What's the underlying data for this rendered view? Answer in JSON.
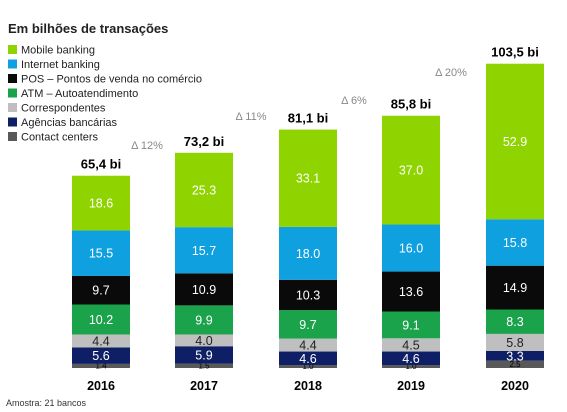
{
  "chart_data": {
    "type": "bar",
    "stacked": true,
    "title": "Em bilhões de transações",
    "categories": [
      "2016",
      "2017",
      "2018",
      "2019",
      "2020"
    ],
    "series": [
      {
        "name": "Contact centers",
        "color": "#595959",
        "values": [
          1.4,
          1.5,
          1.0,
          1.0,
          2.5
        ],
        "labels": [
          "1.4",
          "1.5",
          "1.0",
          "1.0",
          "2.5"
        ]
      },
      {
        "name": "Agências bancárias",
        "color": "#0f1f66",
        "values": [
          5.6,
          5.9,
          4.6,
          4.6,
          3.3
        ],
        "labels": [
          "5.6",
          "5.9",
          "4.6",
          "4.6",
          "3.3"
        ]
      },
      {
        "name": "Correspondentes",
        "color": "#bfbfbf",
        "values": [
          4.4,
          4.0,
          4.4,
          4.5,
          5.8
        ],
        "labels": [
          "4.4",
          "4.0",
          "4.4",
          "4.5",
          "5.8"
        ]
      },
      {
        "name": "ATM – Autoatendimento",
        "color": "#1aa34a",
        "values": [
          10.2,
          9.9,
          9.7,
          9.1,
          8.3
        ],
        "labels": [
          "10.2",
          "9.9",
          "9.7",
          "9.1",
          "8.3"
        ]
      },
      {
        "name": "POS – Pontos de venda no comércio",
        "color": "#0a0a0a",
        "values": [
          9.7,
          10.9,
          10.3,
          13.6,
          14.9
        ],
        "labels": [
          "9.7",
          "10.9",
          "10.3",
          "13.6",
          "14.9"
        ]
      },
      {
        "name": "Internet banking",
        "color": "#0fa0e0",
        "values": [
          15.5,
          15.7,
          18.0,
          16.0,
          15.8
        ],
        "labels": [
          "15.5",
          "15.7",
          "18.0",
          "16.0",
          "15.8"
        ]
      },
      {
        "name": "Mobile banking",
        "color": "#8fd400",
        "values": [
          18.6,
          25.3,
          33.1,
          37.0,
          52.9
        ],
        "labels": [
          "18.6",
          "25.3",
          "33.1",
          "37.0",
          "52.9"
        ]
      }
    ],
    "legend_order": [
      "Mobile banking",
      "Internet banking",
      "POS – Pontos de venda no comércio",
      "ATM – Autoatendimento",
      "Correspondentes",
      "Agências bancárias",
      "Contact centers"
    ],
    "totals": [
      "65,4 bi",
      "73,2 bi",
      "81,1 bi",
      "85,8 bi",
      "103,5 bi"
    ],
    "total_values": [
      65.4,
      73.2,
      81.1,
      85.8,
      103.5
    ],
    "growth": [
      "Δ 12%",
      "Δ 11%",
      "Δ 6%",
      "Δ 20%"
    ],
    "legend_position": "top-left",
    "grid": false,
    "note": "Amostra: 21 bancos"
  }
}
